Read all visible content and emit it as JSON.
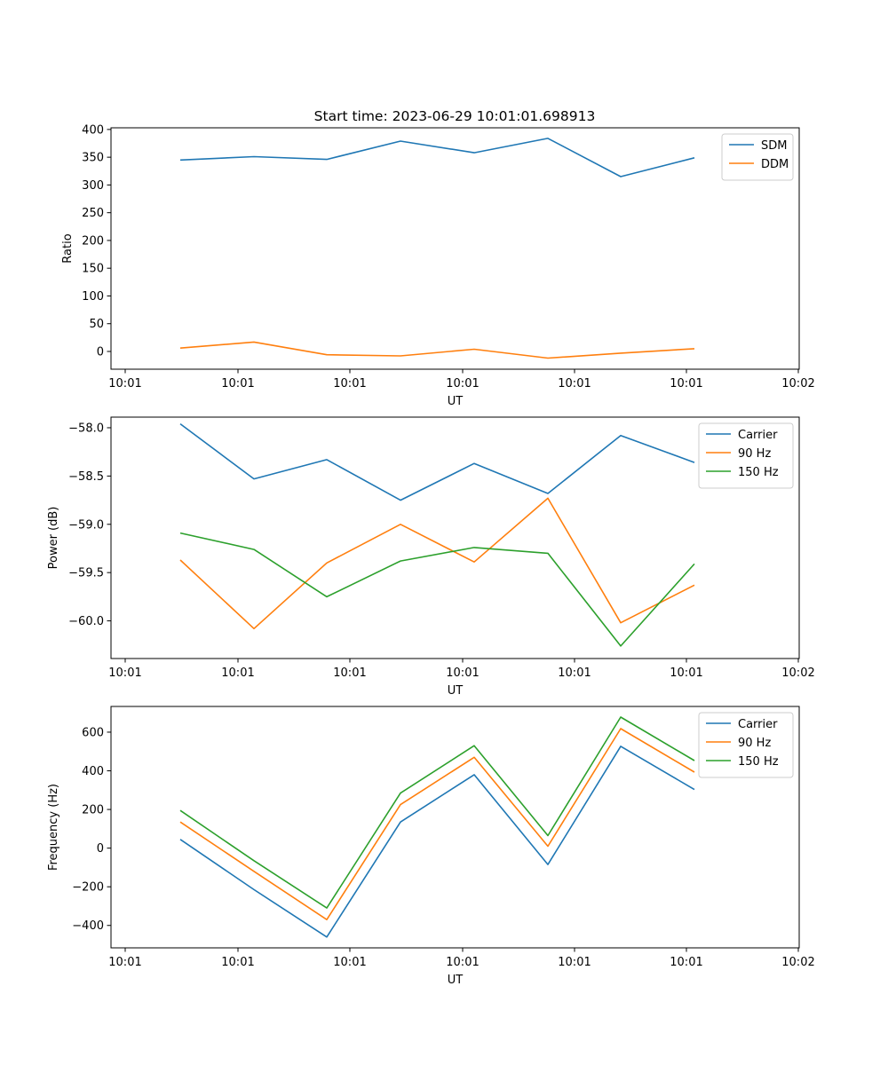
{
  "title": "Start time: 2023-06-29 10:01:01.698913",
  "chart_data": [
    {
      "type": "line",
      "xlabel": "UT",
      "ylabel": "Ratio",
      "x_tick_labels": [
        "10:01",
        "10:01",
        "10:01",
        "10:01",
        "10:01",
        "10:01",
        "10:02"
      ],
      "y_ticks": [
        0,
        50,
        100,
        150,
        200,
        250,
        300,
        350,
        400
      ],
      "ylim": [
        -32,
        403
      ],
      "legend_position": "top-right",
      "series": [
        {
          "name": "SDM",
          "color": "#1f77b4",
          "values": [
            345,
            351,
            346,
            379,
            358,
            384,
            315,
            349
          ]
        },
        {
          "name": "DDM",
          "color": "#ff7f0e",
          "values": [
            6,
            17,
            -6,
            -8,
            4,
            -12,
            -3,
            5
          ]
        }
      ]
    },
    {
      "type": "line",
      "xlabel": "UT",
      "ylabel": "Power (dB)",
      "x_tick_labels": [
        "10:01",
        "10:01",
        "10:01",
        "10:01",
        "10:01",
        "10:01",
        "10:02"
      ],
      "y_ticks": [
        -60.0,
        -59.5,
        -59.0,
        -58.5,
        -58.0
      ],
      "y_tick_labels": [
        "−60.0",
        "−59.5",
        "−59.0",
        "−58.5",
        "−58.0"
      ],
      "ylim": [
        -60.39,
        -57.89
      ],
      "legend_position": "top-right",
      "series": [
        {
          "name": "Carrier",
          "color": "#1f77b4",
          "values": [
            -57.96,
            -58.53,
            -58.33,
            -58.75,
            -58.37,
            -58.68,
            -58.08,
            -58.36
          ]
        },
        {
          "name": "90 Hz",
          "color": "#ff7f0e",
          "values": [
            -59.37,
            -60.08,
            -59.4,
            -59.0,
            -59.39,
            -58.73,
            -60.02,
            -59.63
          ]
        },
        {
          "name": "150 Hz",
          "color": "#2ca02c",
          "values": [
            -59.09,
            -59.26,
            -59.75,
            -59.38,
            -59.24,
            -59.3,
            -60.26,
            -59.41
          ]
        }
      ]
    },
    {
      "type": "line",
      "xlabel": "UT",
      "ylabel": "Frequency (Hz)",
      "x_tick_labels": [
        "10:01",
        "10:01",
        "10:01",
        "10:01",
        "10:01",
        "10:01",
        "10:02"
      ],
      "y_ticks": [
        -400,
        -200,
        0,
        200,
        400,
        600
      ],
      "y_tick_labels": [
        "−400",
        "−200",
        "0",
        "200",
        "400",
        "600"
      ],
      "ylim": [
        -516,
        733
      ],
      "legend_position": "top-right",
      "series": [
        {
          "name": "Carrier",
          "color": "#1f77b4",
          "values": [
            45,
            -215,
            -460,
            135,
            380,
            -85,
            527,
            303
          ]
        },
        {
          "name": "90 Hz",
          "color": "#ff7f0e",
          "values": [
            135,
            -120,
            -370,
            225,
            470,
            10,
            618,
            393
          ]
        },
        {
          "name": "150 Hz",
          "color": "#2ca02c",
          "values": [
            195,
            -65,
            -310,
            285,
            530,
            65,
            678,
            453
          ]
        }
      ]
    }
  ]
}
